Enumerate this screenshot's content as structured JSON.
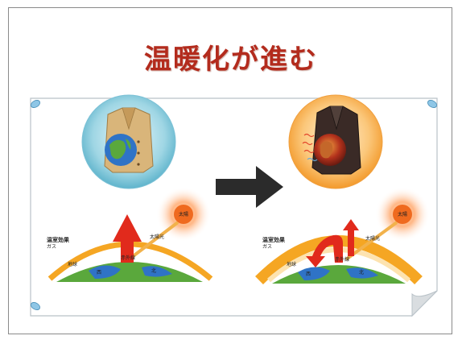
{
  "slide": {
    "title": "温暖化が進む"
  },
  "left_panel": {
    "gas_label": "温室効果",
    "gas_sub": "ガス",
    "earth_label": "地球",
    "sun_label": "太陽",
    "sunlight_label": "太陽光",
    "heat_label": "赤外線",
    "land1": "西",
    "land2": "北"
  },
  "right_panel": {
    "gas_label": "温室効果",
    "gas_sub": "ガス",
    "earth_label": "地球",
    "sun_label": "太陽",
    "sunlight_label": "太陽光",
    "heat_label": "赤外線",
    "land1": "西",
    "land2": "北"
  },
  "colors": {
    "title": "#b32b1d",
    "arrow": "#2b2b2b",
    "sun": "#ef6a1f",
    "heat_arrow": "#e12a1c",
    "atmosphere": "#f5a623",
    "earth_green": "#5aa83c",
    "earth_blue": "#2f73c6"
  }
}
